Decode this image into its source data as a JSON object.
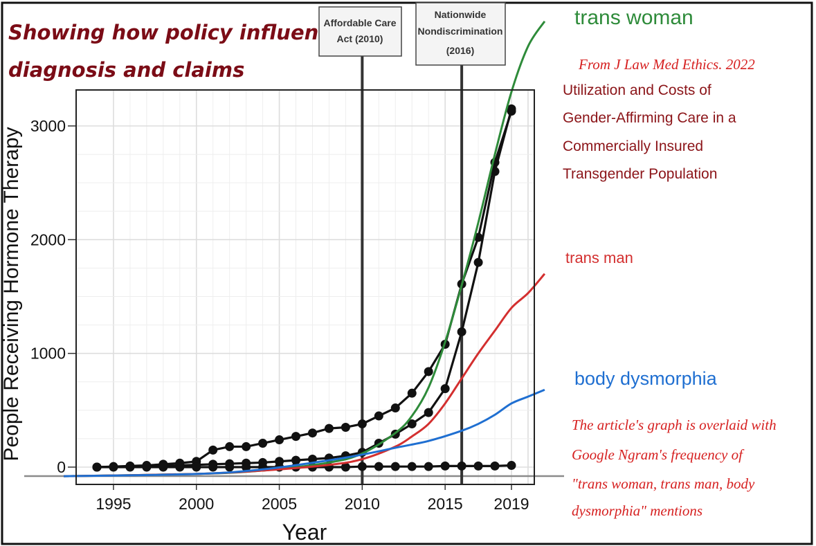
{
  "header": {
    "title_line1": "Showing how policy influences",
    "title_line2": "diagnosis and claims"
  },
  "source": {
    "citation": "From J Law Med Ethics. 2022",
    "article_title_lines": [
      "Utilization and Costs of",
      "Gender-Affirming Care in a",
      "Commercially Insured",
      "Transgender Population"
    ]
  },
  "note_lines": [
    "The article's graph is overlaid with",
    "Google Ngram's frequency of",
    "\"trans woman, trans man, body",
    "dysmorphia\" mentions"
  ],
  "annotations": [
    {
      "year": 2010,
      "text_lines": [
        "Affordable Care",
        "Act (2010)"
      ]
    },
    {
      "year": 2016,
      "text_lines": [
        "Nationwide",
        "Nondiscrimination",
        "(2016)"
      ]
    }
  ],
  "chart_data": {
    "type": "line",
    "xlabel": "Year",
    "ylabel": "People Receiving Hormone Therapy",
    "x_ticks": [
      "1995",
      "2000",
      "2005",
      "2010",
      "2015",
      "2019"
    ],
    "y_ticks": [
      "0",
      "1000",
      "2000",
      "3000"
    ],
    "xlim": [
      1992,
      2021
    ],
    "ylim": [
      -150,
      3300
    ],
    "grid": true,
    "marker_series": [
      {
        "x": [
          1994,
          1995,
          1996,
          1997,
          1998,
          1999,
          2000,
          2001,
          2002,
          2003,
          2004,
          2005,
          2006,
          2007,
          2008,
          2009,
          2010,
          2011,
          2012,
          2013,
          2014,
          2015,
          2016,
          2017,
          2018,
          2019
        ],
        "values": [
          0,
          5,
          10,
          15,
          25,
          35,
          50,
          150,
          180,
          180,
          210,
          240,
          270,
          300,
          340,
          350,
          380,
          450,
          520,
          650,
          840,
          1080,
          1610,
          2020,
          2680,
          3130
        ]
      },
      {
        "x": [
          1994,
          1995,
          1996,
          1997,
          1998,
          1999,
          2000,
          2001,
          2002,
          2003,
          2004,
          2005,
          2006,
          2007,
          2008,
          2009,
          2010,
          2011,
          2012,
          2013,
          2014,
          2015,
          2016,
          2017,
          2018,
          2019
        ],
        "values": [
          0,
          2,
          4,
          6,
          10,
          15,
          20,
          25,
          30,
          35,
          40,
          50,
          60,
          70,
          80,
          100,
          130,
          210,
          290,
          380,
          480,
          690,
          1190,
          1800,
          2600,
          3150
        ]
      },
      {
        "x": [
          1994,
          1995,
          1996,
          1997,
          1998,
          1999,
          2000,
          2001,
          2002,
          2003,
          2004,
          2005,
          2006,
          2007,
          2008,
          2009,
          2010,
          2011,
          2012,
          2013,
          2014,
          2015,
          2016,
          2017,
          2018,
          2019
        ],
        "values": [
          0,
          0,
          0,
          0,
          0,
          0,
          0,
          0,
          0,
          0,
          0,
          0,
          0,
          0,
          0,
          0,
          5,
          5,
          5,
          5,
          5,
          10,
          10,
          10,
          10,
          15
        ]
      }
    ],
    "overlay_series": [
      {
        "name": "trans woman",
        "color": "#2e8b3a",
        "x": [
          1992,
          2000,
          2004,
          2008,
          2010,
          2012,
          2013,
          2014,
          2015,
          2016,
          2017,
          2018,
          2019,
          2020,
          2021
        ],
        "values": [
          -80,
          -60,
          -30,
          40,
          120,
          300,
          450,
          700,
          1100,
          1600,
          2150,
          2750,
          3300,
          3700,
          3920
        ]
      },
      {
        "name": "trans man",
        "color": "#d32f2f",
        "x": [
          1992,
          2000,
          2004,
          2008,
          2010,
          2012,
          2013,
          2014,
          2015,
          2016,
          2017,
          2018,
          2019,
          2020,
          2021
        ],
        "values": [
          -80,
          -60,
          -30,
          20,
          70,
          180,
          270,
          380,
          560,
          780,
          1000,
          1200,
          1400,
          1530,
          1700
        ]
      },
      {
        "name": "body dysmorphia",
        "color": "#1f6fd1",
        "x": [
          1992,
          2000,
          2004,
          2008,
          2010,
          2012,
          2014,
          2016,
          2017,
          2018,
          2019,
          2020,
          2021
        ],
        "values": [
          -80,
          -60,
          -20,
          60,
          110,
          170,
          230,
          320,
          380,
          460,
          560,
          620,
          680
        ]
      }
    ]
  }
}
